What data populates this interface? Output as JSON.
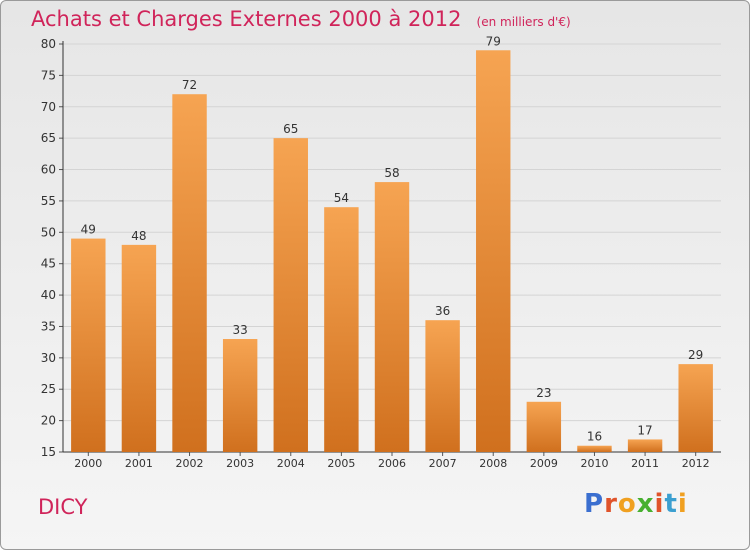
{
  "chart_data": {
    "type": "bar",
    "title": "Achats et Charges Externes 2000 à 2012",
    "subtitle": "(en milliers d'€)",
    "categories": [
      "2000",
      "2001",
      "2002",
      "2003",
      "2004",
      "2005",
      "2006",
      "2007",
      "2008",
      "2009",
      "2010",
      "2011",
      "2012"
    ],
    "values": [
      49,
      48,
      72,
      33,
      65,
      54,
      58,
      36,
      79,
      23,
      16,
      17,
      29
    ],
    "ylim": [
      15,
      80
    ],
    "yticks": [
      15,
      20,
      25,
      30,
      35,
      40,
      45,
      50,
      55,
      60,
      65,
      70,
      75,
      80
    ],
    "grid": true,
    "bar_color_top": "#f6a452",
    "bar_color_bottom": "#d0701e"
  },
  "place_name": "DICY",
  "logo": {
    "letters": [
      "P",
      "r",
      "o",
      "x",
      "i",
      "t",
      "i"
    ],
    "colors": [
      "#3b6fd0",
      "#e0532a",
      "#f0a020",
      "#47b030",
      "#e0532a",
      "#3b9fd0",
      "#f0a020"
    ]
  }
}
